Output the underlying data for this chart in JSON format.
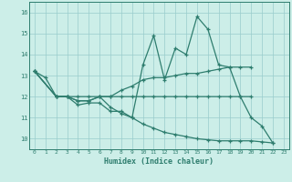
{
  "xlabel": "Humidex (Indice chaleur)",
  "background_color": "#cceee8",
  "grid_color": "#99cccc",
  "line_color": "#2e7d6e",
  "xlim": [
    -0.5,
    23.5
  ],
  "ylim": [
    9.5,
    16.5
  ],
  "xticks": [
    0,
    1,
    2,
    3,
    4,
    5,
    6,
    7,
    8,
    9,
    10,
    11,
    12,
    13,
    14,
    15,
    16,
    17,
    18,
    19,
    20,
    21,
    22,
    23
  ],
  "yticks": [
    10,
    11,
    12,
    13,
    14,
    15,
    16
  ],
  "series": [
    {
      "x": [
        0,
        1,
        2,
        3,
        4,
        5,
        6,
        7,
        8,
        9,
        10,
        11,
        12,
        13,
        14,
        15,
        16,
        17,
        18,
        19,
        20,
        21,
        22
      ],
      "y": [
        13.2,
        12.9,
        12.0,
        12.0,
        11.6,
        11.7,
        11.7,
        11.3,
        11.3,
        11.0,
        13.5,
        14.9,
        12.8,
        14.3,
        14.0,
        15.8,
        15.2,
        13.5,
        13.4,
        12.0,
        11.0,
        10.6,
        9.8
      ]
    },
    {
      "x": [
        0,
        2,
        3,
        4,
        5,
        6,
        7,
        8,
        9,
        10,
        11,
        12,
        13,
        14,
        15,
        16,
        17,
        18,
        19,
        20
      ],
      "y": [
        13.2,
        12.0,
        12.0,
        11.8,
        11.8,
        12.0,
        12.0,
        12.3,
        12.5,
        12.8,
        12.9,
        12.9,
        13.0,
        13.1,
        13.1,
        13.2,
        13.3,
        13.4,
        13.4,
        13.4
      ]
    },
    {
      "x": [
        0,
        2,
        3,
        4,
        5,
        6,
        7,
        8,
        9,
        10,
        11,
        12,
        13,
        14,
        15,
        16,
        17,
        18,
        19,
        20
      ],
      "y": [
        13.2,
        12.0,
        12.0,
        11.8,
        11.8,
        12.0,
        12.0,
        12.0,
        12.0,
        12.0,
        12.0,
        12.0,
        12.0,
        12.0,
        12.0,
        12.0,
        12.0,
        12.0,
        12.0,
        12.0
      ]
    },
    {
      "x": [
        0,
        2,
        3,
        4,
        5,
        6,
        7,
        8,
        9,
        10,
        11,
        12,
        13,
        14,
        15,
        16,
        17,
        18,
        19,
        20,
        21,
        22
      ],
      "y": [
        13.2,
        12.0,
        12.0,
        12.0,
        12.0,
        12.0,
        11.5,
        11.2,
        11.0,
        10.7,
        10.5,
        10.3,
        10.2,
        10.1,
        10.0,
        9.95,
        9.9,
        9.9,
        9.9,
        9.9,
        9.85,
        9.8
      ]
    }
  ]
}
